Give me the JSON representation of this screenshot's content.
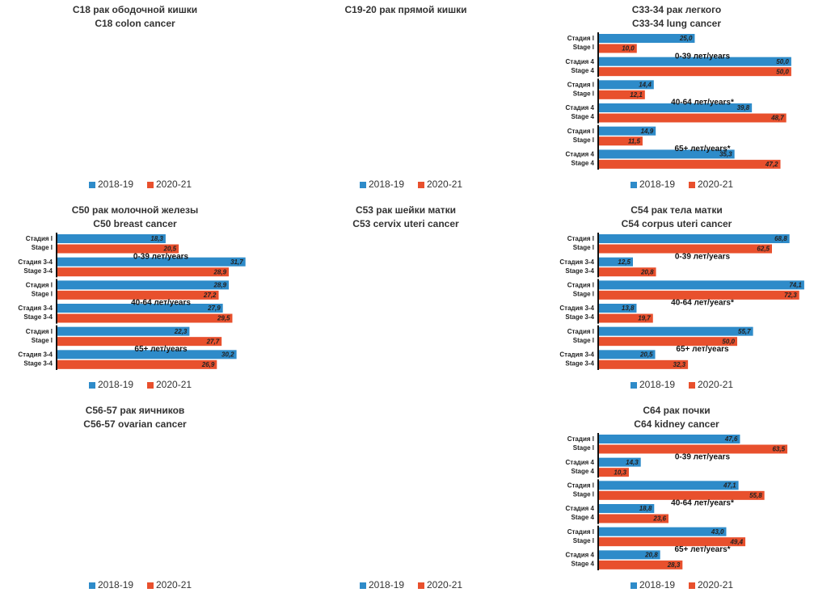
{
  "chart_data": [
    {
      "type": "bar",
      "title": "C18 рак ободочной кишки",
      "subtitle": "C18 colon cancer",
      "categories": [],
      "series": [
        {
          "name": "2018-19",
          "color": "#2e8bc9",
          "values": []
        },
        {
          "name": "2020-21",
          "color": "#e8502d",
          "values": []
        }
      ]
    },
    {
      "type": "bar",
      "title": "C19-20 рак прямой кишки",
      "categories": [],
      "series": [
        {
          "name": "2018-19",
          "color": "#2e8bc9",
          "values": []
        },
        {
          "name": "2020-21",
          "color": "#e8502d",
          "values": []
        }
      ]
    },
    {
      "type": "hbar",
      "title": "C33-34 рак легкого",
      "subtitle": "C33-34 lung cancer",
      "xlim": [
        0,
        54
      ],
      "categories": [
        [
          "Стадия I",
          "Stage I"
        ],
        [
          "Стадия 4",
          "Stage 4"
        ],
        [
          "Стадия I",
          "Stage I"
        ],
        [
          "Стадия 4",
          "Stage 4"
        ],
        [
          "Стадия I",
          "Stage I"
        ],
        [
          "Стадия 4",
          "Stage 4"
        ]
      ],
      "groups": [
        "0-39 лет/years",
        "40-64 лет/years*",
        "65+ лет/years*"
      ],
      "series": [
        {
          "name": "2018-19",
          "color": "#2e8bc9",
          "values": [
            25.0,
            50.0,
            14.4,
            39.8,
            14.9,
            35.3
          ],
          "value_labels": [
            "25,0",
            "50,0",
            "14,4",
            "39,8",
            "14,9",
            "35,3"
          ]
        },
        {
          "name": "2020-21",
          "color": "#e8502d",
          "values": [
            10.0,
            50.0,
            12.1,
            48.7,
            11.5,
            47.2
          ],
          "value_labels": [
            "10,0",
            "50,0",
            "12,1",
            "48,7",
            "11,5",
            "47,2"
          ]
        }
      ]
    },
    {
      "type": "hbar",
      "title": "C50 рак молочной железы",
      "subtitle": "C50 breast cancer",
      "xlim": [
        0,
        35
      ],
      "categories": [
        [
          "Стадия I",
          "Stage I"
        ],
        [
          "Стадия 3-4",
          "Stage 3-4"
        ],
        [
          "Стадия I",
          "Stage I"
        ],
        [
          "Стадия 3-4",
          "Stage 3-4"
        ],
        [
          "Стадия I",
          "Stage I"
        ],
        [
          "Стадия 3-4",
          "Stage 3-4"
        ]
      ],
      "groups": [
        "0-39 лет/years",
        "40-64 лет/years",
        "65+ лет/years"
      ],
      "series": [
        {
          "name": "2018-19",
          "color": "#2e8bc9",
          "values": [
            18.3,
            31.7,
            28.9,
            27.9,
            22.3,
            30.2
          ],
          "value_labels": [
            "18,3",
            "31,7",
            "28,9",
            "27,9",
            "22,3",
            "30,2"
          ]
        },
        {
          "name": "2020-21",
          "color": "#e8502d",
          "values": [
            20.5,
            28.9,
            27.2,
            29.5,
            27.7,
            26.9
          ],
          "value_labels": [
            "20,5",
            "28,9",
            "27,2",
            "29,5",
            "27,7",
            "26,9"
          ]
        }
      ]
    },
    {
      "type": "bar",
      "title": "C53 рак шейки матки",
      "subtitle": "C53 cervix uteri cancer",
      "categories": [],
      "series": []
    },
    {
      "type": "hbar",
      "title": "C54 рак тела матки",
      "subtitle": "C54 corpus uteri cancer",
      "xlim": [
        0,
        75
      ],
      "categories": [
        [
          "Стадия I",
          "Stage I"
        ],
        [
          "Стадия 3-4",
          "Stage 3-4"
        ],
        [
          "Стадия I",
          "Stage I"
        ],
        [
          "Стадия 3-4",
          "Stage 3-4"
        ],
        [
          "Стадия I",
          "Stage I"
        ],
        [
          "Стадия 3-4",
          "Stage 3-4"
        ]
      ],
      "groups": [
        "0-39 лет/years",
        "40-64 лет/years*",
        "65+ лет/years"
      ],
      "series": [
        {
          "name": "2018-19",
          "color": "#2e8bc9",
          "values": [
            68.8,
            12.5,
            74.1,
            13.8,
            55.7,
            20.5
          ],
          "value_labels": [
            "68,8",
            "12,5",
            "74,1",
            "13,8",
            "55,7",
            "20,5"
          ]
        },
        {
          "name": "2020-21",
          "color": "#e8502d",
          "values": [
            62.5,
            20.8,
            72.3,
            19.7,
            50.0,
            32.3
          ],
          "value_labels": [
            "62,5",
            "20,8",
            "72,3",
            "19,7",
            "50,0",
            "32,3"
          ]
        }
      ]
    },
    {
      "type": "bar",
      "title": "C56-57 рак яичников",
      "subtitle": "C56-57 ovarian cancer",
      "categories": [],
      "series": [
        {
          "name": "2018-19",
          "color": "#2e8bc9",
          "values": []
        },
        {
          "name": "2020-21",
          "color": "#e8502d",
          "values": []
        }
      ]
    },
    {
      "type": "bar",
      "categories": [],
      "series": [
        {
          "name": "2018-19",
          "color": "#2e8bc9",
          "values": []
        },
        {
          "name": "2020-21",
          "color": "#e8502d",
          "values": []
        }
      ]
    },
    {
      "type": "hbar",
      "title": "C64 рак почки",
      "subtitle": "C64 kidney cancer",
      "xlim": [
        0,
        70
      ],
      "categories": [
        [
          "Стадия I",
          "Stage I"
        ],
        [
          "Стадия 4",
          "Stage 4"
        ],
        [
          "Стадия I",
          "Stage I"
        ],
        [
          "Стадия 4",
          "Stage 4"
        ],
        [
          "Стадия I",
          "Stage I"
        ],
        [
          "Стадия 4",
          "Stage 4"
        ]
      ],
      "groups": [
        "0-39 лет/years",
        "40-64 лет/years*",
        "65+ лет/years*"
      ],
      "series": [
        {
          "name": "2018-19",
          "color": "#2e8bc9",
          "values": [
            47.6,
            14.3,
            47.1,
            18.8,
            43.0,
            20.8
          ],
          "value_labels": [
            "47,6",
            "14,3",
            "47,1",
            "18,8",
            "43,0",
            "20,8"
          ]
        },
        {
          "name": "2020-21",
          "color": "#e8502d",
          "values": [
            63.5,
            10.3,
            55.8,
            23.6,
            49.4,
            28.3
          ],
          "value_labels": [
            "63,5",
            "10,3",
            "55,8",
            "23,6",
            "49,4",
            "28,3"
          ]
        }
      ]
    }
  ]
}
